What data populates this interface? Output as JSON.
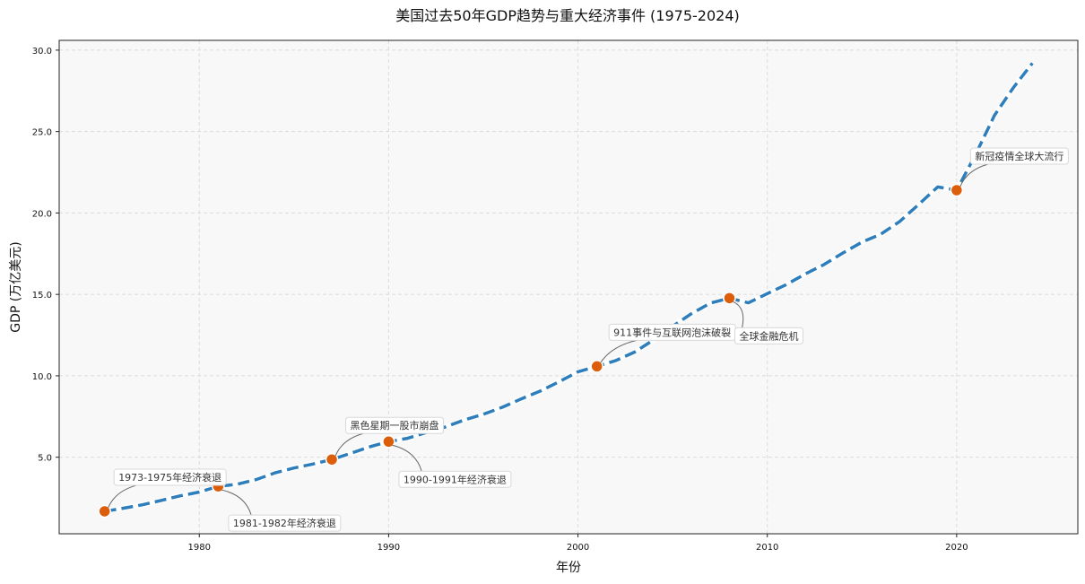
{
  "chart_data": {
    "type": "line",
    "title": "美国过去50年GDP趋势与重大经济事件 (1975-2024)",
    "xlabel": "年份",
    "ylabel": "GDP (万亿美元)",
    "xlim": [
      1972.6,
      2026.4
    ],
    "ylim": [
      0.3,
      30.6
    ],
    "x_ticks": [
      1980,
      1990,
      2000,
      2010,
      2020
    ],
    "y_ticks": [
      "5.0",
      "10.0",
      "15.0",
      "20.0",
      "25.0",
      "30.0"
    ],
    "grid": true,
    "line_style": "dashed",
    "colors": {
      "line": "#2e7ebc",
      "marker": "#dd5e0a",
      "background": "#f8f8f8"
    },
    "x": [
      1975,
      1976,
      1977,
      1978,
      1979,
      1980,
      1981,
      1982,
      1983,
      1984,
      1985,
      1986,
      1987,
      1988,
      1989,
      1990,
      1991,
      1992,
      1993,
      1994,
      1995,
      1996,
      1997,
      1998,
      1999,
      2000,
      2001,
      2002,
      2003,
      2004,
      2005,
      2006,
      2007,
      2008,
      2009,
      2010,
      2011,
      2012,
      2013,
      2014,
      2015,
      2016,
      2017,
      2018,
      2019,
      2020,
      2021,
      2022,
      2023,
      2024
    ],
    "y": [
      1.68,
      1.87,
      2.08,
      2.35,
      2.63,
      2.86,
      3.21,
      3.34,
      3.63,
      4.04,
      4.34,
      4.58,
      4.86,
      5.24,
      5.64,
      5.96,
      6.16,
      6.52,
      6.86,
      7.29,
      7.64,
      8.07,
      8.58,
      9.06,
      9.63,
      10.25,
      10.58,
      10.94,
      11.46,
      12.21,
      13.04,
      13.82,
      14.47,
      14.77,
      14.48,
      15.05,
      15.6,
      16.25,
      16.84,
      17.55,
      18.21,
      18.7,
      19.48,
      20.53,
      21.6,
      21.4,
      23.6,
      26.0,
      27.7,
      29.2
    ],
    "annotations": [
      {
        "year": 1975,
        "gdp": 1.68,
        "label": "1973-1975年经济衰退"
      },
      {
        "year": 1981,
        "gdp": 3.21,
        "label": "1981-1982年经济衰退"
      },
      {
        "year": 1987,
        "gdp": 4.86,
        "label": "黑色星期一股市崩盘"
      },
      {
        "year": 1990,
        "gdp": 5.96,
        "label": "1990-1991年经济衰退"
      },
      {
        "year": 2001,
        "gdp": 10.58,
        "label": "911事件与互联网泡沫破裂"
      },
      {
        "year": 2008,
        "gdp": 14.77,
        "label": "全球金融危机"
      },
      {
        "year": 2020,
        "gdp": 21.4,
        "label": "新冠疫情全球大流行"
      }
    ]
  }
}
